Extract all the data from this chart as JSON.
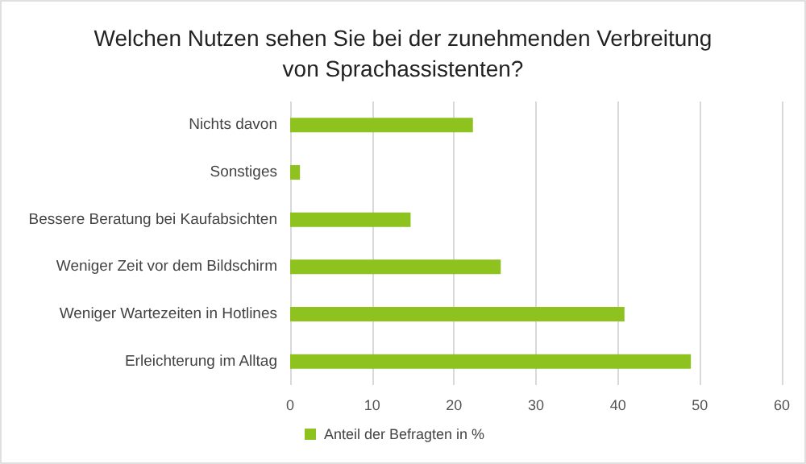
{
  "chart_data": {
    "type": "bar",
    "orientation": "horizontal",
    "title": "Welchen Nutzen sehen Sie bei der zunehmenden Verbreitung\nvon Sprachassistenten?",
    "categories": [
      "Nichts davon",
      "Sonstiges",
      "Bessere Beratung bei Kaufabsichten",
      "Weniger Zeit vor dem Bildschirm",
      "Weniger Wartezeiten in Hotlines",
      "Erleichterung im Alltag"
    ],
    "series": [
      {
        "name": "Anteil der Befragten in %",
        "color": "#8dc21f",
        "values": [
          22.3,
          1.2,
          14.7,
          25.7,
          40.8,
          48.9
        ]
      }
    ],
    "xlim": [
      0,
      60
    ],
    "xticks": [
      0,
      10,
      20,
      30,
      40,
      50,
      60
    ],
    "grid": "x",
    "legend": "bottom"
  }
}
